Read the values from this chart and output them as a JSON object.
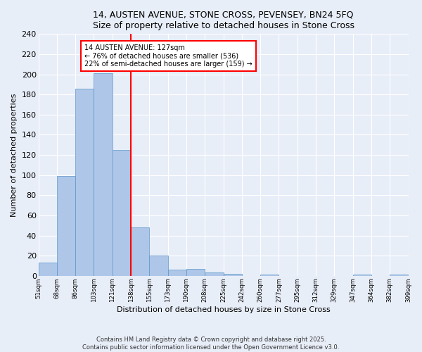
{
  "title_line1": "14, AUSTEN AVENUE, STONE CROSS, PEVENSEY, BN24 5FQ",
  "title_line2": "Size of property relative to detached houses in Stone Cross",
  "xlabel": "Distribution of detached houses by size in Stone Cross",
  "ylabel": "Number of detached properties",
  "bar_values": [
    13,
    99,
    186,
    201,
    125,
    48,
    20,
    6,
    7,
    3,
    2,
    0,
    1,
    0,
    0,
    0,
    0,
    1,
    0,
    1
  ],
  "categories": [
    "51sqm",
    "68sqm",
    "86sqm",
    "103sqm",
    "121sqm",
    "138sqm",
    "155sqm",
    "173sqm",
    "190sqm",
    "208sqm",
    "225sqm",
    "242sqm",
    "260sqm",
    "277sqm",
    "295sqm",
    "312sqm",
    "329sqm",
    "347sqm",
    "364sqm",
    "382sqm",
    "399sqm"
  ],
  "bar_color": "#aec6e8",
  "bar_edge_color": "#5a96c8",
  "vline_color": "red",
  "annotation_title": "14 AUSTEN AVENUE: 127sqm",
  "annotation_line1": "← 76% of detached houses are smaller (536)",
  "annotation_line2": "22% of semi-detached houses are larger (159) →",
  "annotation_box_color": "white",
  "annotation_box_edgecolor": "red",
  "ylim": [
    0,
    240
  ],
  "yticks": [
    0,
    20,
    40,
    60,
    80,
    100,
    120,
    140,
    160,
    180,
    200,
    220,
    240
  ],
  "footer_line1": "Contains HM Land Registry data © Crown copyright and database right 2025.",
  "footer_line2": "Contains public sector information licensed under the Open Government Licence v3.0.",
  "bg_color": "#e8eef8"
}
